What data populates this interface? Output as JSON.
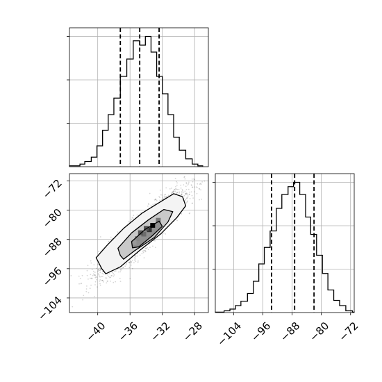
{
  "chart_data": [
    {
      "type": "histogram",
      "panel": "marginal-x",
      "xlim": [
        -43.5,
        -26.3
      ],
      "bins": [
        [
          -43.5,
          -42.2,
          1
        ],
        [
          -42.2,
          -41.6,
          3
        ],
        [
          -41.6,
          -40.8,
          6
        ],
        [
          -40.8,
          -40.1,
          11
        ],
        [
          -40.1,
          -39.4,
          24
        ],
        [
          -39.4,
          -38.7,
          42
        ],
        [
          -38.7,
          -38.0,
          60
        ],
        [
          -38.0,
          -37.2,
          79
        ],
        [
          -37.2,
          -36.4,
          104
        ],
        [
          -36.4,
          -35.6,
          124
        ],
        [
          -35.6,
          -34.8,
          145
        ],
        [
          -34.8,
          -34.1,
          140
        ],
        [
          -34.1,
          -33.4,
          150
        ],
        [
          -33.4,
          -32.7,
          132
        ],
        [
          -32.7,
          -32.0,
          104
        ],
        [
          -32.0,
          -31.3,
          84
        ],
        [
          -31.3,
          -30.6,
          60
        ],
        [
          -30.6,
          -29.9,
          34
        ],
        [
          -29.9,
          -29.1,
          19
        ],
        [
          -29.1,
          -28.3,
          9
        ],
        [
          -28.3,
          -27.6,
          3
        ],
        [
          -27.6,
          -27.0,
          1
        ]
      ],
      "quantiles": [
        -37.2,
        -34.8,
        -32.4
      ],
      "ylim": [
        0,
        160
      ],
      "yticks": [
        50,
        100,
        150
      ]
    },
    {
      "type": "histogram",
      "panel": "marginal-y",
      "xlim": [
        -109,
        -71
      ],
      "bins": [
        [
          -109,
          -106.6,
          0.5
        ],
        [
          -106.6,
          -105,
          2
        ],
        [
          -105,
          -103.5,
          4
        ],
        [
          -103.5,
          -102,
          8
        ],
        [
          -102,
          -100.2,
          13
        ],
        [
          -100.2,
          -98.6,
          22
        ],
        [
          -98.6,
          -97.1,
          36
        ],
        [
          -97.1,
          -95.6,
          56
        ],
        [
          -95.6,
          -94,
          75
        ],
        [
          -94,
          -92.3,
          94
        ],
        [
          -92.3,
          -90.8,
          120
        ],
        [
          -90.8,
          -89.1,
          136
        ],
        [
          -89.1,
          -87.6,
          145
        ],
        [
          -87.6,
          -85.9,
          150
        ],
        [
          -85.9,
          -84.3,
          136
        ],
        [
          -84.3,
          -82.9,
          110
        ],
        [
          -82.9,
          -81.3,
          90
        ],
        [
          -81.3,
          -79.7,
          66
        ],
        [
          -79.7,
          -78.2,
          45
        ],
        [
          -78.2,
          -76.6,
          26
        ],
        [
          -76.6,
          -75,
          14
        ],
        [
          -75,
          -73.3,
          8
        ],
        [
          -73.3,
          -71.5,
          2
        ],
        [
          -71.5,
          -71,
          0.5
        ]
      ],
      "quantiles": [
        -93.6,
        -87.3,
        -82.0
      ],
      "ylim": [
        0,
        160
      ],
      "yticks": [
        50,
        100,
        150
      ]
    },
    {
      "type": "scatter-contour",
      "panel": "joint",
      "xlim": [
        -43.5,
        -26.3
      ],
      "ylim": [
        -108,
        -70
      ],
      "center": [
        -34.5,
        -86
      ],
      "contours": [
        [
          [
            -39.5,
            -96
          ],
          [
            -40.2,
            -93
          ],
          [
            -38.8,
            -89.5
          ],
          [
            -36.8,
            -85
          ],
          [
            -34.5,
            -80.8
          ],
          [
            -32.3,
            -77.8
          ],
          [
            -30.6,
            -75.5
          ],
          [
            -29.5,
            -76.3
          ],
          [
            -29.1,
            -78.8
          ],
          [
            -30.2,
            -82
          ],
          [
            -32.2,
            -86.5
          ],
          [
            -34.8,
            -91
          ],
          [
            -37.2,
            -95.5
          ],
          [
            -39,
            -97.4
          ]
        ],
        [
          [
            -37.2,
            -92.4
          ],
          [
            -37.5,
            -90.4
          ],
          [
            -35.8,
            -86.2
          ],
          [
            -33.7,
            -82.6
          ],
          [
            -31.8,
            -79.8
          ],
          [
            -30.7,
            -80.4
          ],
          [
            -31.3,
            -83.2
          ],
          [
            -33,
            -87.5
          ],
          [
            -35.5,
            -91.2
          ],
          [
            -36.8,
            -93.4
          ]
        ],
        [
          [
            -35.7,
            -90.3
          ],
          [
            -35.8,
            -88.6
          ],
          [
            -34.1,
            -85.2
          ],
          [
            -32.4,
            -83
          ],
          [
            -32,
            -84.4
          ],
          [
            -33.3,
            -87.1
          ],
          [
            -34.9,
            -90
          ]
        ]
      ],
      "pixels": [
        [
          -35.4,
          -88.4,
          "#888888"
        ],
        [
          -34.6,
          -87.2,
          "#6b6b6b"
        ],
        [
          -33.9,
          -86,
          "#333333"
        ],
        [
          -33.5,
          -84.8,
          "#000000"
        ],
        [
          -34.3,
          -85.6,
          "#555555"
        ],
        [
          -35.8,
          -89.5,
          "#9a9a9a"
        ],
        [
          -32.8,
          -83.4,
          "#777777"
        ],
        [
          -35,
          -86.8,
          "#585858"
        ]
      ],
      "xticks": [
        -40,
        -36,
        -32,
        -28
      ],
      "yticks": [
        -72,
        -80,
        -88,
        -96,
        -104
      ]
    },
    {
      "panel": "marginal-y-ticks",
      "xticks": [
        -104,
        -96,
        -88,
        -80,
        -72
      ]
    }
  ]
}
